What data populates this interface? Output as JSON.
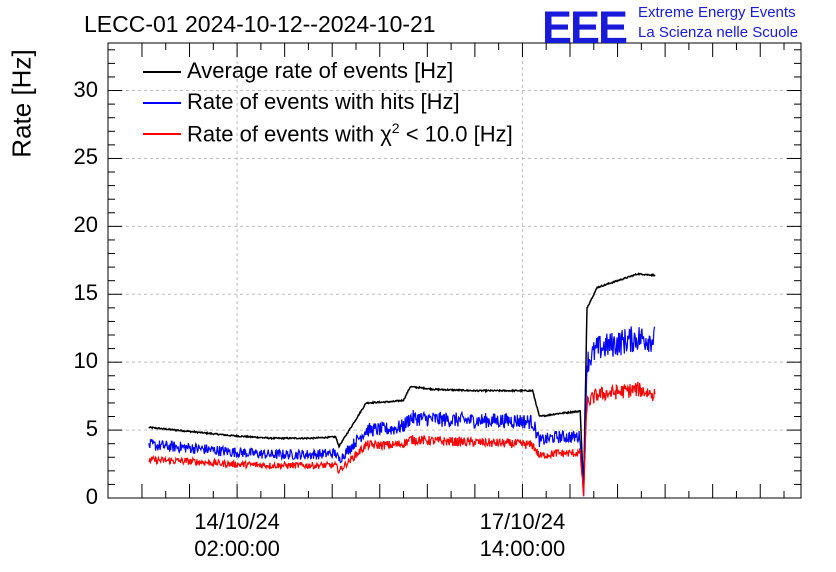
{
  "header": {
    "title": "LECC-01 2024-10-12--2024-10-21",
    "logo_text": "EEE",
    "org_line1": "Extreme Energy Events",
    "org_line2": "La Scienza nelle Scuole"
  },
  "colors": {
    "average": "#000000",
    "hits": "#0000ff",
    "chi2": "#ff0000",
    "logo": "#1a1ad9",
    "grid": "#bdbdbd"
  },
  "chart_data": {
    "type": "line",
    "ylabel": "Rate [Hz]",
    "xlabel": "",
    "ylim": [
      0,
      33.5
    ],
    "yticks": [
      {
        "value": 0,
        "label": "0"
      },
      {
        "value": 5,
        "label": "5"
      },
      {
        "value": 10,
        "label": "10"
      },
      {
        "value": 15,
        "label": "15"
      },
      {
        "value": 20,
        "label": "20"
      },
      {
        "value": 25,
        "label": "25"
      },
      {
        "value": 30,
        "label": "30"
      }
    ],
    "xticks": [
      {
        "date": "14/10/24",
        "time": "02:00:00"
      },
      {
        "date": "17/10/24",
        "time": "14:00:00"
      }
    ],
    "grid": true,
    "legend_position": "top-left",
    "series": [
      {
        "name": "Average rate of events [Hz]",
        "color": "#000000",
        "noise": 0.1,
        "x": [
          "2024-10-13 00:00",
          "2024-10-13 12:00",
          "2024-10-14 00:00",
          "2024-10-14 12:00",
          "2024-10-15 00:00",
          "2024-10-15 07:00",
          "2024-10-15 08:00",
          "2024-10-15 16:00",
          "2024-10-16 00:00",
          "2024-10-16 03:00",
          "2024-10-16 05:00",
          "2024-10-16 12:00",
          "2024-10-17 00:00",
          "2024-10-17 12:00",
          "2024-10-17 17:00",
          "2024-10-17 19:00",
          "2024-10-18 00:00",
          "2024-10-18 07:00",
          "2024-10-18 08:00",
          "2024-10-18 09:00",
          "2024-10-18 12:00",
          "2024-10-19 00:00",
          "2024-10-19 05:00"
        ],
        "y": [
          5.2,
          4.9,
          4.6,
          4.4,
          4.4,
          4.5,
          3.8,
          7.0,
          7.1,
          7.2,
          8.2,
          8.0,
          7.9,
          7.9,
          7.9,
          6.0,
          6.2,
          6.4,
          0.5,
          14.0,
          15.5,
          16.5,
          16.4
        ]
      },
      {
        "name": "Rate of events with hits [Hz]",
        "color": "#0000ff",
        "noise": 0.65,
        "x": [
          "2024-10-13 00:00",
          "2024-10-13 12:00",
          "2024-10-14 00:00",
          "2024-10-14 12:00",
          "2024-10-15 00:00",
          "2024-10-15 07:00",
          "2024-10-15 08:00",
          "2024-10-15 16:00",
          "2024-10-16 00:00",
          "2024-10-16 03:00",
          "2024-10-16 05:00",
          "2024-10-16 12:00",
          "2024-10-17 00:00",
          "2024-10-17 12:00",
          "2024-10-17 17:00",
          "2024-10-17 19:00",
          "2024-10-18 00:00",
          "2024-10-18 07:00",
          "2024-10-18 08:00",
          "2024-10-18 09:00",
          "2024-10-18 12:00",
          "2024-10-19 00:00",
          "2024-10-19 05:00"
        ],
        "y": [
          3.9,
          3.7,
          3.4,
          3.2,
          3.2,
          3.3,
          2.8,
          5.0,
          5.1,
          5.3,
          5.9,
          5.8,
          5.7,
          5.7,
          5.6,
          4.2,
          4.5,
          4.5,
          0.3,
          10.0,
          11.0,
          11.8,
          11.7
        ]
      },
      {
        "name": "Rate of events with χ² < 10.0 [Hz]",
        "color": "#ff0000",
        "noise": 0.5,
        "x": [
          "2024-10-13 00:00",
          "2024-10-13 12:00",
          "2024-10-14 00:00",
          "2024-10-14 12:00",
          "2024-10-15 00:00",
          "2024-10-15 07:00",
          "2024-10-15 08:00",
          "2024-10-15 16:00",
          "2024-10-16 00:00",
          "2024-10-16 03:00",
          "2024-10-16 05:00",
          "2024-10-16 12:00",
          "2024-10-17 00:00",
          "2024-10-17 12:00",
          "2024-10-17 17:00",
          "2024-10-17 19:00",
          "2024-10-18 00:00",
          "2024-10-18 07:00",
          "2024-10-18 08:00",
          "2024-10-18 09:00",
          "2024-10-18 12:00",
          "2024-10-19 00:00",
          "2024-10-19 05:00"
        ],
        "y": [
          2.8,
          2.7,
          2.5,
          2.4,
          2.4,
          2.4,
          2.0,
          3.9,
          3.9,
          4.0,
          4.3,
          4.2,
          4.1,
          4.0,
          3.9,
          3.1,
          3.3,
          3.3,
          0.2,
          7.0,
          7.6,
          8.0,
          7.6
        ]
      }
    ]
  },
  "legend": {
    "line1": "Average rate of events [Hz]",
    "line2": "Rate of events with hits [Hz]",
    "line3_prefix": "Rate of events with ",
    "line3_chi": "χ",
    "line3_sup": "2",
    "line3_suffix": " < 10.0 [Hz]"
  }
}
